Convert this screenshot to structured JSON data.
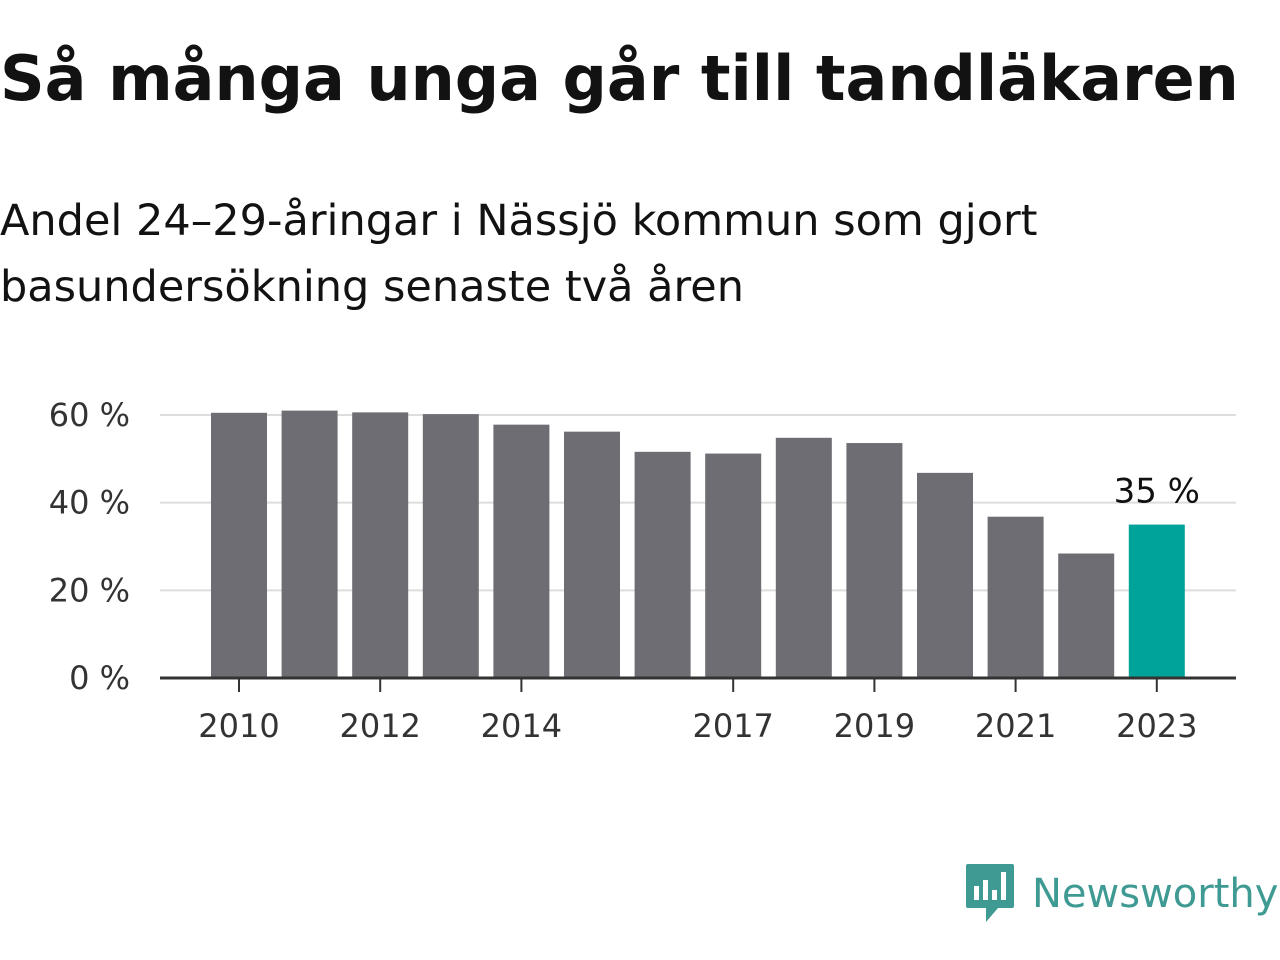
{
  "title": "Så många unga går till tandläkaren",
  "subtitle": "Andel 24–29-åringar i Nässjö kommun som gjort basundersökning senaste två åren",
  "brand": {
    "name": "Newsworthy",
    "color": "#3e9a92",
    "icon": "bar-chart-speech-bubble-icon"
  },
  "chart_data": {
    "type": "bar",
    "categories": [
      "2010",
      "2011",
      "2012",
      "2013",
      "2014",
      "2015",
      "2016",
      "2017",
      "2018",
      "2019",
      "2020",
      "2021",
      "2022",
      "2023"
    ],
    "values": [
      60.5,
      61,
      60.6,
      60.2,
      57.8,
      56.2,
      51.6,
      51.2,
      54.8,
      53.6,
      46.8,
      36.8,
      28.4,
      35
    ],
    "x_tick_labels": [
      "2010",
      "2012",
      "2014",
      "2017",
      "2019",
      "2021",
      "2023"
    ],
    "y_ticks": [
      0,
      20,
      40,
      60
    ],
    "y_tick_labels": [
      "0 %",
      "20 %",
      "40 %",
      "60 %"
    ],
    "ylim": [
      0,
      62
    ],
    "grid": true,
    "bar_color": "#6e6d73",
    "highlight_color": "#00a39a",
    "highlight_category": "2023",
    "annotations": [
      {
        "category": "2023",
        "text": "35 %"
      }
    ],
    "xlabel": "",
    "ylabel": ""
  }
}
